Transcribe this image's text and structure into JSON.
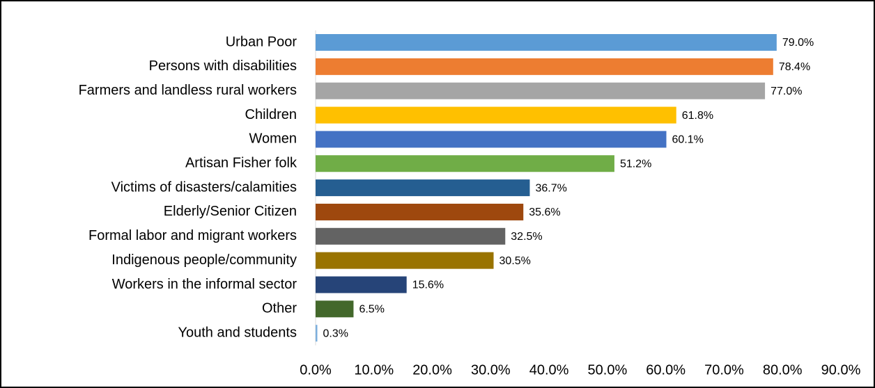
{
  "chart_data": {
    "type": "bar",
    "orientation": "horizontal",
    "categories": [
      "Urban Poor",
      "Persons with disabilities",
      "Farmers and landless rural workers",
      "Children",
      "Women",
      "Artisan Fisher folk",
      "Victims of disasters/calamities",
      "Elderly/Senior Citizen",
      "Formal labor and migrant workers",
      "Indigenous people/community",
      "Workers in the informal sector",
      "Other",
      "Youth and students"
    ],
    "values": [
      79.0,
      78.4,
      77.0,
      61.8,
      60.1,
      51.2,
      36.7,
      35.6,
      32.5,
      30.5,
      15.6,
      6.5,
      0.3
    ],
    "value_labels": [
      "79.0%",
      "78.4%",
      "77.0%",
      "61.8%",
      "60.1%",
      "51.2%",
      "36.7%",
      "35.6%",
      "32.5%",
      "30.5%",
      "15.6%",
      "6.5%",
      "0.3%"
    ],
    "colors": [
      "#5b9bd5",
      "#ed7d31",
      "#a5a5a5",
      "#ffc000",
      "#4472c4",
      "#70ad47",
      "#255e91",
      "#9e480e",
      "#636363",
      "#997300",
      "#264478",
      "#43682b",
      "#7cafdd"
    ],
    "xlim": [
      0,
      90
    ],
    "xticks": [
      {
        "value": 0,
        "label": "0.0%"
      },
      {
        "value": 10,
        "label": "10.0%"
      },
      {
        "value": 20,
        "label": "20.0%"
      },
      {
        "value": 30,
        "label": "30.0%"
      },
      {
        "value": 40,
        "label": "40.0%"
      },
      {
        "value": 50,
        "label": "50.0%"
      },
      {
        "value": 60,
        "label": "60.0%"
      },
      {
        "value": 70,
        "label": "70.0%"
      },
      {
        "value": 80,
        "label": "80.0%"
      },
      {
        "value": 90,
        "label": "90.0%"
      }
    ],
    "grid": false
  }
}
